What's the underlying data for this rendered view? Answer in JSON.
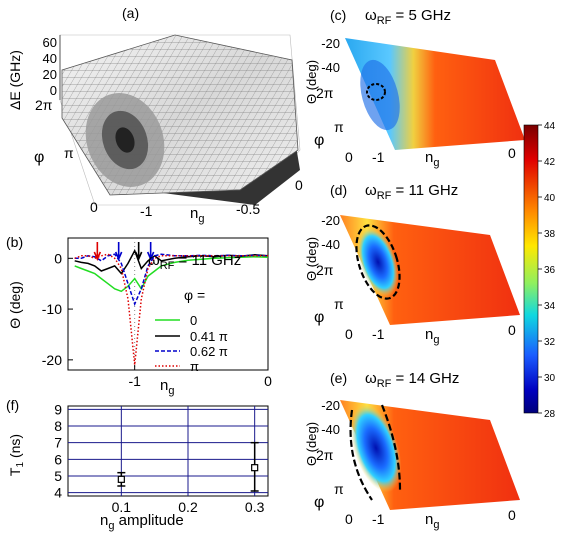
{
  "panels": {
    "a": {
      "label": "(a)",
      "z_axis_label": "ΔE (GHz)",
      "z_ticks": [
        "60",
        "40",
        "20",
        "0"
      ],
      "phi_label": "φ",
      "phi_ticks": [
        "2π",
        "π",
        "0"
      ],
      "ng_label": "n",
      "ng_sub": "g",
      "ng_ticks": [
        "-1",
        "-0.5",
        "0"
      ]
    },
    "b": {
      "label": "(b)",
      "omega_text": "ω",
      "omega_sub": "RF",
      "omega_value": " = 11 GHz",
      "ylabel": "Θ (deg)",
      "xlabel": "n",
      "xlabel_sub": "g",
      "legend_title": "φ =",
      "legend": [
        "0",
        "0.41 π",
        "0.62 π",
        "π"
      ]
    },
    "f": {
      "label": "(f)",
      "ylabel": "T",
      "ylabel_sub": "1",
      "ylabel_unit": " (ns)",
      "xlabel": "n",
      "xlabel_sub": "g",
      "xlabel_rest": " amplitude"
    },
    "c": {
      "label": "(c)",
      "omega_text": "ω",
      "omega_sub": "RF",
      "omega_value": " = 5 GHz"
    },
    "d": {
      "label": "(d)",
      "omega_text": "ω",
      "omega_sub": "RF",
      "omega_value": " = 11 GHz"
    },
    "e": {
      "label": "(e)",
      "omega_text": "ω",
      "omega_sub": "RF",
      "omega_value": " = 14 GHz"
    },
    "surface_axes": {
      "theta_label": "Θ (deg)",
      "theta_ticks": [
        "-20",
        "-40"
      ],
      "phi_label": "φ",
      "phi_ticks": [
        "2π",
        "π",
        "0"
      ],
      "ng_label": "n",
      "ng_sub": "g",
      "ng_ticks": [
        "-1",
        "0"
      ]
    },
    "colorbar": {
      "ticks": [
        "44",
        "42",
        "40",
        "38",
        "36",
        "34",
        "32",
        "30",
        "28"
      ]
    }
  },
  "chart_data": [
    {
      "type": "line",
      "panel": "b",
      "xlim": [
        -1.5,
        0
      ],
      "ylim": [
        -22,
        4
      ],
      "x_ticks": [
        "-1",
        "0"
      ],
      "y_ticks": [
        "0",
        "-10",
        "-20"
      ],
      "series": [
        {
          "name": "0",
          "color": "#22dd22",
          "style": "solid",
          "points": [
            [
              -1.45,
              -1.5
            ],
            [
              -1.4,
              -2
            ],
            [
              -1.35,
              -2.5
            ],
            [
              -1.3,
              -3
            ],
            [
              -1.25,
              -4
            ],
            [
              -1.2,
              -5
            ],
            [
              -1.15,
              -6
            ],
            [
              -1.1,
              -6.5
            ],
            [
              -1.05,
              -5.5
            ],
            [
              -1.0,
              -4
            ],
            [
              -0.95,
              -6
            ],
            [
              -0.9,
              -3.5
            ],
            [
              -0.85,
              -2.5
            ],
            [
              -0.8,
              -1.5
            ],
            [
              -0.7,
              -0.8
            ],
            [
              -0.6,
              -0.4
            ],
            [
              -0.5,
              -0.2
            ],
            [
              -0.4,
              0
            ],
            [
              -0.3,
              0.1
            ],
            [
              -0.2,
              0.2
            ],
            [
              -0.1,
              0.3
            ],
            [
              0,
              0.2
            ]
          ]
        },
        {
          "name": "0.41 π",
          "color": "#000000",
          "style": "solid",
          "points": [
            [
              -1.45,
              -0.5
            ],
            [
              -1.4,
              -0.8
            ],
            [
              -1.35,
              -1
            ],
            [
              -1.3,
              -1.5
            ],
            [
              -1.25,
              -2.5
            ],
            [
              -1.2,
              -2
            ],
            [
              -1.15,
              -1.5
            ],
            [
              -1.1,
              -3
            ],
            [
              -1.05,
              -1
            ],
            [
              -1.0,
              1.5
            ],
            [
              -0.95,
              -2
            ],
            [
              -0.9,
              -0.5
            ],
            [
              -0.85,
              0.5
            ],
            [
              -0.8,
              -0.5
            ],
            [
              -0.7,
              0
            ],
            [
              -0.6,
              0.3
            ],
            [
              -0.5,
              0.5
            ],
            [
              -0.4,
              0.3
            ],
            [
              -0.3,
              0.6
            ],
            [
              -0.2,
              0.4
            ],
            [
              -0.1,
              0.7
            ],
            [
              0,
              0.5
            ]
          ]
        },
        {
          "name": "0.62 π",
          "color": "#0000cc",
          "style": "dashed",
          "points": [
            [
              -1.45,
              0
            ],
            [
              -1.4,
              0
            ],
            [
              -1.35,
              0.5
            ],
            [
              -1.3,
              0.3
            ],
            [
              -1.25,
              -0.5
            ],
            [
              -1.2,
              0.5
            ],
            [
              -1.15,
              0.8
            ],
            [
              -1.1,
              -1
            ],
            [
              -1.05,
              -5
            ],
            [
              -1.0,
              -9
            ],
            [
              -0.95,
              -6
            ],
            [
              -0.9,
              -1.5
            ],
            [
              -0.85,
              0.5
            ],
            [
              -0.8,
              0.8
            ],
            [
              -0.7,
              0.5
            ],
            [
              -0.6,
              0.5
            ],
            [
              -0.5,
              0.6
            ],
            [
              -0.4,
              0.5
            ],
            [
              -0.3,
              0.6
            ],
            [
              -0.2,
              0.5
            ],
            [
              -0.1,
              0.6
            ],
            [
              0,
              0.5
            ]
          ]
        },
        {
          "name": "π",
          "color": "#dd0000",
          "style": "dotted",
          "points": [
            [
              -1.45,
              0
            ],
            [
              -1.4,
              0.5
            ],
            [
              -1.35,
              0.5
            ],
            [
              -1.3,
              0
            ],
            [
              -1.25,
              0.5
            ],
            [
              -1.2,
              0.8
            ],
            [
              -1.15,
              0
            ],
            [
              -1.1,
              -2
            ],
            [
              -1.05,
              -8
            ],
            [
              -1.0,
              -21
            ],
            [
              -0.95,
              -8
            ],
            [
              -0.9,
              -2
            ],
            [
              -0.85,
              0
            ],
            [
              -0.8,
              0.5
            ],
            [
              -0.7,
              0.5
            ],
            [
              -0.6,
              0.5
            ],
            [
              -0.5,
              0.5
            ],
            [
              -0.4,
              0.5
            ],
            [
              -0.3,
              0.5
            ],
            [
              -0.2,
              0.5
            ],
            [
              -0.1,
              0.5
            ],
            [
              0,
              0.5
            ]
          ]
        }
      ],
      "arrows": [
        {
          "x": -1.28,
          "color": "#dd0000"
        },
        {
          "x": -1.12,
          "color": "#0000cc"
        },
        {
          "x": -0.97,
          "color": "#000000"
        },
        {
          "x": -0.88,
          "color": "#0000cc"
        }
      ]
    },
    {
      "type": "scatter",
      "panel": "f",
      "xlim": [
        0.02,
        0.32
      ],
      "ylim": [
        3.8,
        9.2
      ],
      "x_ticks": [
        "0.1",
        "0.2",
        "0.3"
      ],
      "y_ticks": [
        "4",
        "5",
        "6",
        "7",
        "8",
        "9"
      ],
      "points": [
        {
          "x": 0.1,
          "y": 4.8,
          "err_low": 4.4,
          "err_high": 5.2
        },
        {
          "x": 0.3,
          "y": 5.5,
          "err_low": 4.1,
          "err_high": 7.0
        }
      ]
    }
  ]
}
